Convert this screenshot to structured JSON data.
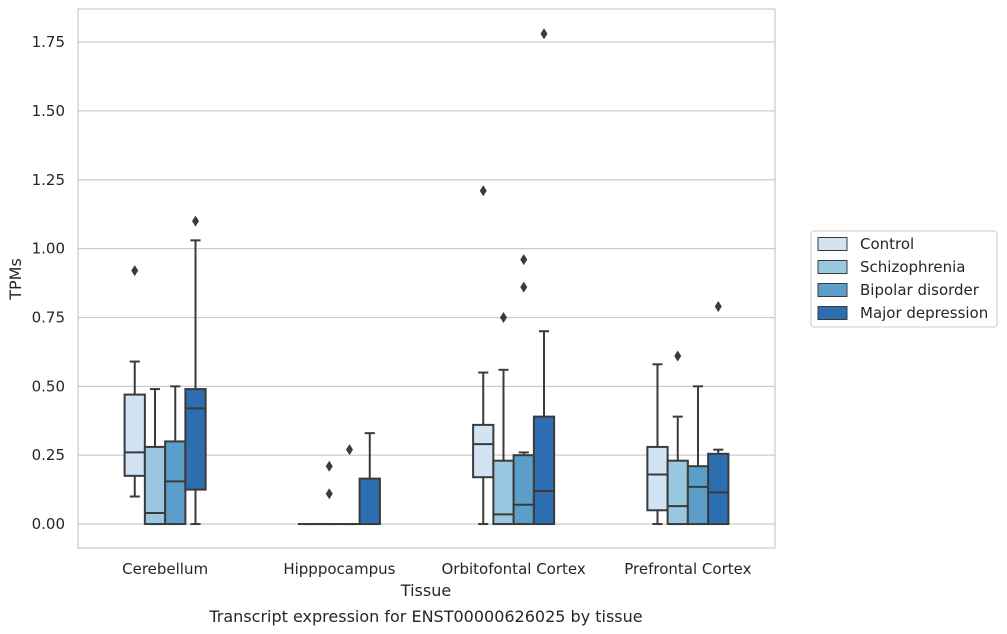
{
  "chart_data": {
    "type": "box",
    "title": "",
    "caption": "Transcript expression for ENST00000626025 by tissue",
    "xlabel": "Tissue",
    "ylabel": "TPMs",
    "ylim": [
      -0.087,
      1.87
    ],
    "yticks": [
      "0.00",
      "0.25",
      "0.50",
      "0.75",
      "1.00",
      "1.25",
      "1.50",
      "1.75"
    ],
    "grid": "horizontal",
    "legend_position": "right",
    "categories": [
      "Cerebellum",
      "Hipppocampus",
      "Orbitofontal Cortex",
      "Prefrontal Cortex"
    ],
    "series": [
      {
        "name": "Control",
        "color": "#d2e3f3",
        "boxes": [
          {
            "whislo": 0.1,
            "q1": 0.175,
            "med": 0.26,
            "q3": 0.47,
            "whishi": 0.59,
            "fliers": [
              0.92
            ]
          },
          {
            "whislo": 0.0,
            "q1": 0.0,
            "med": 0.0,
            "q3": 0.0,
            "whishi": 0.0,
            "fliers": []
          },
          {
            "whislo": 0.0,
            "q1": 0.17,
            "med": 0.29,
            "q3": 0.36,
            "whishi": 0.55,
            "fliers": [
              1.21
            ]
          },
          {
            "whislo": 0.0,
            "q1": 0.05,
            "med": 0.18,
            "q3": 0.28,
            "whishi": 0.58,
            "fliers": []
          }
        ]
      },
      {
        "name": "Schizophrenia",
        "color": "#9ac8e0",
        "boxes": [
          {
            "whislo": 0.0,
            "q1": 0.0,
            "med": 0.04,
            "q3": 0.28,
            "whishi": 0.49,
            "fliers": []
          },
          {
            "whislo": 0.0,
            "q1": 0.0,
            "med": 0.0,
            "q3": 0.0,
            "whishi": 0.0,
            "fliers": [
              0.11,
              0.21
            ]
          },
          {
            "whislo": 0.0,
            "q1": 0.0,
            "med": 0.035,
            "q3": 0.23,
            "whishi": 0.56,
            "fliers": [
              0.75
            ]
          },
          {
            "whislo": 0.0,
            "q1": 0.0,
            "med": 0.065,
            "q3": 0.23,
            "whishi": 0.39,
            "fliers": [
              0.61
            ]
          }
        ]
      },
      {
        "name": "Bipolar disorder",
        "color": "#5a9ec9",
        "boxes": [
          {
            "whislo": 0.0,
            "q1": 0.0,
            "med": 0.155,
            "q3": 0.3,
            "whishi": 0.5,
            "fliers": []
          },
          {
            "whislo": 0.0,
            "q1": 0.0,
            "med": 0.0,
            "q3": 0.0,
            "whishi": 0.0,
            "fliers": [
              0.27
            ]
          },
          {
            "whislo": 0.0,
            "q1": 0.0,
            "med": 0.07,
            "q3": 0.25,
            "whishi": 0.26,
            "fliers": [
              0.86,
              0.96
            ]
          },
          {
            "whislo": 0.0,
            "q1": 0.0,
            "med": 0.135,
            "q3": 0.21,
            "whishi": 0.5,
            "fliers": []
          }
        ]
      },
      {
        "name": "Major depression",
        "color": "#2c6eb0",
        "boxes": [
          {
            "whislo": 0.0,
            "q1": 0.125,
            "med": 0.42,
            "q3": 0.49,
            "whishi": 1.03,
            "fliers": [
              1.1
            ]
          },
          {
            "whislo": 0.0,
            "q1": 0.0,
            "med": 0.0,
            "q3": 0.165,
            "whishi": 0.33,
            "fliers": []
          },
          {
            "whislo": 0.0,
            "q1": 0.0,
            "med": 0.12,
            "q3": 0.39,
            "whishi": 0.7,
            "fliers": [
              1.78
            ]
          },
          {
            "whislo": 0.0,
            "q1": 0.0,
            "med": 0.115,
            "q3": 0.255,
            "whishi": 0.27,
            "fliers": [
              0.79
            ]
          }
        ]
      }
    ]
  }
}
